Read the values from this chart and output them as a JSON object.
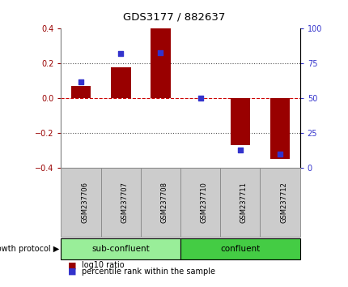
{
  "title": "GDS3177 / 882637",
  "samples": [
    "GSM237706",
    "GSM237707",
    "GSM237708",
    "GSM237710",
    "GSM237711",
    "GSM237712"
  ],
  "log10_ratio": [
    0.07,
    0.18,
    0.4,
    0.0,
    -0.27,
    -0.35
  ],
  "percentile_rank": [
    62,
    82,
    83,
    50,
    13,
    10
  ],
  "bar_color": "#990000",
  "dot_color": "#3333cc",
  "ylim_left": [
    -0.4,
    0.4
  ],
  "ylim_right": [
    0,
    100
  ],
  "yticks_left": [
    -0.4,
    -0.2,
    0.0,
    0.2,
    0.4
  ],
  "yticks_right": [
    0,
    25,
    50,
    75,
    100
  ],
  "groups": [
    {
      "label": "sub-confluent",
      "n_samples": 3,
      "color": "#99ee99"
    },
    {
      "label": "confluent",
      "n_samples": 3,
      "color": "#44cc44"
    }
  ],
  "group_label": "growth protocol",
  "legend_bar_label": "log10 ratio",
  "legend_dot_label": "percentile rank within the sample",
  "hline_color": "#cc0000",
  "grid_color": "#555555",
  "bar_width": 0.5,
  "xlabel_bg": "#cccccc",
  "xlabel_edge": "#888888"
}
